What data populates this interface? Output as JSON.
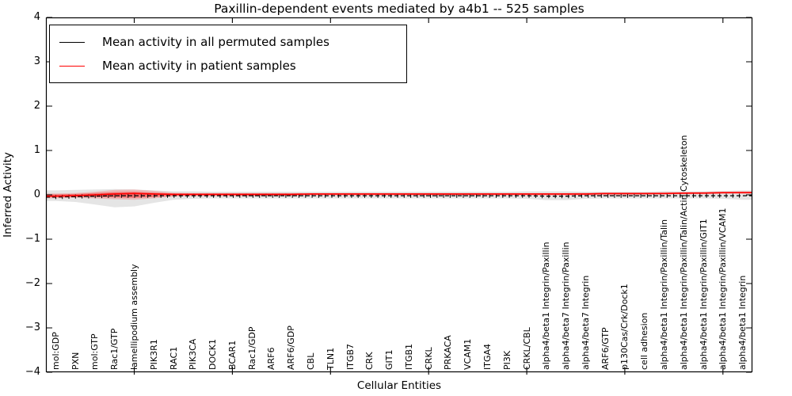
{
  "chart": {
    "title": "Paxillin-dependent events mediated by a4b1 -- 525 samples",
    "xlabel": "Cellular Entities",
    "ylabel": "Inferred Activity"
  },
  "chart_data": {
    "type": "line",
    "title": "Paxillin-dependent events mediated by a4b1 -- 525 samples",
    "xlabel": "Cellular Entities",
    "ylabel": "Inferred Activity",
    "ylim": [
      -4,
      4
    ],
    "yticks": [
      -4,
      -3,
      -2,
      -1,
      0,
      1,
      2,
      3,
      4
    ],
    "xtick_major_positions": [
      5,
      10,
      15,
      20,
      25,
      30,
      35
    ],
    "grid": false,
    "legend_position": "upper left",
    "categories": [
      "mol:GDP",
      "PXN",
      "mol:GTP",
      "Rac1/GTP",
      "lamellipodium assembly",
      "PIK3R1",
      "RAC1",
      "PIK3CA",
      "DOCK1",
      "BCAR1",
      "Rac1/GDP",
      "ARF6",
      "ARF6/GDP",
      "CBL",
      "TLN1",
      "ITGB7",
      "CRK",
      "GIT1",
      "ITGB1",
      "CRKL",
      "PRKACA",
      "VCAM1",
      "ITGA4",
      "PI3K",
      "CRKL/CBL",
      "alpha4/beta1 Integrin/Paxillin",
      "alpha4/beta7 Integrin/Paxillin",
      "alpha4/beta7 Integrin",
      "ARF6/GTP",
      "p130Cas/Crk/Dock1",
      "cell adhesion",
      "alpha4/beta1 Integrin/Paxillin/Talin",
      "alpha4/beta1 Integrin/Paxillin/Talin/Actin Cytoskeleton",
      "alpha4/beta1 Integrin/Paxillin/GIT1",
      "alpha4/beta1 Integrin/Paxillin/VCAM1",
      "alpha4/beta1 Integrin"
    ],
    "series": [
      {
        "name": "Mean activity in all permuted samples",
        "color": "#000000",
        "line_style": "dashed-with-tick-markers",
        "values": [
          -0.05,
          -0.04,
          -0.03,
          -0.02,
          -0.02,
          -0.02,
          -0.02,
          -0.02,
          -0.02,
          -0.02,
          -0.02,
          -0.02,
          -0.02,
          -0.02,
          -0.02,
          -0.02,
          -0.02,
          -0.02,
          -0.02,
          -0.02,
          -0.02,
          -0.02,
          -0.02,
          -0.02,
          -0.02,
          -0.03,
          -0.03,
          -0.02,
          -0.02,
          -0.02,
          -0.02,
          -0.02,
          -0.02,
          -0.02,
          -0.02,
          -0.02
        ]
      },
      {
        "name": "Mean activity in patient samples",
        "color": "#ff0000",
        "line_style": "solid",
        "values": [
          -0.03,
          -0.02,
          0.0,
          0.02,
          0.03,
          0.02,
          0.01,
          0.01,
          0.01,
          0.01,
          0.01,
          0.01,
          0.01,
          0.02,
          0.02,
          0.02,
          0.02,
          0.02,
          0.02,
          0.02,
          0.02,
          0.02,
          0.02,
          0.02,
          0.02,
          0.02,
          0.02,
          0.02,
          0.03,
          0.03,
          0.03,
          0.03,
          0.04,
          0.04,
          0.05,
          0.05
        ]
      }
    ],
    "bands": [
      {
        "name": "permuted-samples-range",
        "color": "#000000",
        "opacity": 0.1,
        "upper": [
          0.1,
          0.11,
          0.12,
          0.13,
          0.12,
          0.1,
          0.08,
          0.08,
          0.07,
          0.07,
          0.07,
          0.07,
          0.07,
          0.07,
          0.07,
          0.07,
          0.07,
          0.07,
          0.07,
          0.07,
          0.07,
          0.07,
          0.07,
          0.07,
          0.08,
          0.08,
          0.08,
          0.07,
          0.07,
          0.07,
          0.07,
          0.08,
          0.08,
          0.08,
          0.09,
          0.1
        ],
        "lower": [
          -0.14,
          -0.16,
          -0.22,
          -0.28,
          -0.26,
          -0.18,
          -0.11,
          -0.09,
          -0.08,
          -0.08,
          -0.08,
          -0.08,
          -0.08,
          -0.08,
          -0.08,
          -0.08,
          -0.08,
          -0.08,
          -0.08,
          -0.08,
          -0.08,
          -0.08,
          -0.08,
          -0.08,
          -0.09,
          -0.12,
          -0.12,
          -0.09,
          -0.08,
          -0.08,
          -0.08,
          -0.08,
          -0.08,
          -0.08,
          -0.09,
          -0.11
        ]
      },
      {
        "name": "patient-samples-range",
        "color": "#ff0000",
        "opacity": 0.18,
        "upper": [
          0.03,
          0.04,
          0.07,
          0.11,
          0.12,
          0.09,
          0.05,
          0.04,
          0.04,
          0.04,
          0.04,
          0.04,
          0.04,
          0.04,
          0.04,
          0.04,
          0.04,
          0.04,
          0.04,
          0.04,
          0.04,
          0.04,
          0.04,
          0.04,
          0.04,
          0.04,
          0.04,
          0.05,
          0.05,
          0.05,
          0.05,
          0.06,
          0.06,
          0.07,
          0.07,
          0.08
        ],
        "lower": [
          -0.08,
          -0.07,
          -0.08,
          -0.1,
          -0.11,
          -0.08,
          -0.04,
          -0.03,
          -0.03,
          -0.03,
          -0.03,
          -0.02,
          -0.02,
          -0.02,
          -0.02,
          -0.02,
          -0.02,
          -0.02,
          -0.02,
          -0.02,
          -0.02,
          -0.02,
          -0.02,
          -0.02,
          -0.02,
          -0.02,
          -0.02,
          -0.01,
          -0.01,
          -0.01,
          0.0,
          0.0,
          0.01,
          0.01,
          0.02,
          0.02
        ]
      },
      {
        "name": "patient-samples-core",
        "color": "#ff0000",
        "opacity": 0.38,
        "upper": [
          0.01,
          0.02,
          0.04,
          0.06,
          0.07,
          0.05,
          0.03,
          0.03,
          0.03,
          0.03,
          0.03,
          0.03,
          0.03,
          0.03,
          0.03,
          0.03,
          0.03,
          0.03,
          0.03,
          0.03,
          0.03,
          0.03,
          0.03,
          0.03,
          0.03,
          0.03,
          0.03,
          0.03,
          0.04,
          0.04,
          0.04,
          0.04,
          0.05,
          0.05,
          0.06,
          0.06
        ],
        "lower": [
          -0.05,
          -0.04,
          -0.05,
          -0.06,
          -0.07,
          -0.05,
          -0.02,
          -0.01,
          -0.01,
          -0.01,
          -0.01,
          -0.01,
          -0.01,
          0.0,
          0.0,
          0.0,
          0.0,
          0.0,
          0.0,
          0.0,
          0.0,
          0.0,
          0.0,
          0.0,
          0.0,
          0.0,
          0.0,
          0.0,
          0.01,
          0.01,
          0.01,
          0.02,
          0.02,
          0.03,
          0.03,
          0.04
        ]
      }
    ]
  }
}
